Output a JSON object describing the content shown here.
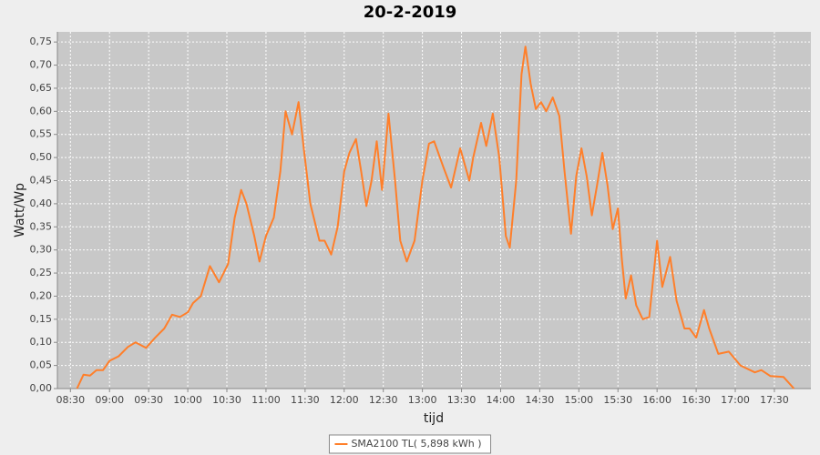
{
  "chart_data": {
    "type": "line",
    "title": "20-2-2019",
    "x_label": "tijd",
    "y_label": "Watt/Wp",
    "x": [
      "08:35",
      "08:40",
      "08:45",
      "08:50",
      "08:55",
      "09:00",
      "09:07",
      "09:14",
      "09:20",
      "09:28",
      "09:35",
      "09:42",
      "09:48",
      "09:54",
      "10:00",
      "10:04",
      "10:10",
      "10:17",
      "10:24",
      "10:31",
      "10:36",
      "10:41",
      "10:45",
      "10:51",
      "10:55",
      "11:00",
      "11:06",
      "11:11",
      "11:15",
      "11:20",
      "11:25",
      "11:29",
      "11:34",
      "11:41",
      "11:45",
      "11:50",
      "11:55",
      "12:00",
      "12:04",
      "12:09",
      "12:13",
      "12:17",
      "12:21",
      "12:25",
      "12:29",
      "12:34",
      "12:39",
      "12:43",
      "12:48",
      "12:54",
      "13:00",
      "13:05",
      "13:09",
      "13:16",
      "13:22",
      "13:29",
      "13:36",
      "13:39",
      "13:45",
      "13:49",
      "13:54",
      "13:59",
      "14:04",
      "14:07",
      "14:12",
      "14:16",
      "14:19",
      "14:23",
      "14:27",
      "14:31",
      "14:35",
      "14:40",
      "14:45",
      "14:49",
      "14:54",
      "14:58",
      "15:02",
      "15:06",
      "15:10",
      "15:14",
      "15:18",
      "15:22",
      "15:26",
      "15:30",
      "15:33",
      "15:36",
      "15:40",
      "15:44",
      "15:49",
      "15:54",
      "16:00",
      "16:04",
      "16:10",
      "16:15",
      "16:21",
      "16:25",
      "16:30",
      "16:36",
      "16:40",
      "16:47",
      "16:55",
      "17:04",
      "17:15",
      "17:20",
      "17:27",
      "17:37",
      "17:45"
    ],
    "series": [
      {
        "name": "SMA2100 TL( 5,898 kWh )",
        "color": "#ff7f2a",
        "values": [
          0.0,
          0.03,
          0.028,
          0.04,
          0.04,
          0.06,
          0.07,
          0.09,
          0.1,
          0.088,
          0.11,
          0.13,
          0.16,
          0.155,
          0.165,
          0.185,
          0.2,
          0.265,
          0.23,
          0.27,
          0.37,
          0.43,
          0.4,
          0.33,
          0.275,
          0.33,
          0.37,
          0.47,
          0.6,
          0.55,
          0.62,
          0.52,
          0.4,
          0.32,
          0.32,
          0.29,
          0.35,
          0.47,
          0.51,
          0.54,
          0.47,
          0.395,
          0.45,
          0.535,
          0.43,
          0.595,
          0.45,
          0.32,
          0.275,
          0.32,
          0.45,
          0.53,
          0.535,
          0.48,
          0.435,
          0.52,
          0.45,
          0.5,
          0.575,
          0.525,
          0.595,
          0.5,
          0.33,
          0.305,
          0.45,
          0.68,
          0.74,
          0.66,
          0.605,
          0.62,
          0.6,
          0.63,
          0.59,
          0.47,
          0.335,
          0.46,
          0.52,
          0.46,
          0.375,
          0.44,
          0.51,
          0.44,
          0.345,
          0.39,
          0.28,
          0.195,
          0.245,
          0.18,
          0.15,
          0.155,
          0.32,
          0.22,
          0.285,
          0.19,
          0.13,
          0.13,
          0.11,
          0.17,
          0.13,
          0.075,
          0.08,
          0.05,
          0.035,
          0.04,
          0.027,
          0.025,
          0.0
        ]
      }
    ],
    "xlim": [
      "08:20",
      "17:58"
    ],
    "xticks": [
      "08:30",
      "09:00",
      "09:30",
      "10:00",
      "10:30",
      "11:00",
      "11:30",
      "12:00",
      "12:30",
      "13:00",
      "13:30",
      "14:00",
      "14:30",
      "15:00",
      "15:30",
      "16:00",
      "16:30",
      "17:00",
      "17:30"
    ],
    "ylim": [
      0,
      0.772
    ],
    "yticks": [
      {
        "value": 0,
        "label": "0,00"
      },
      {
        "value": 0.05,
        "label": "0,05"
      },
      {
        "value": 0.1,
        "label": "0,10"
      },
      {
        "value": 0.15,
        "label": "0,15"
      },
      {
        "value": 0.2,
        "label": "0,20"
      },
      {
        "value": 0.25,
        "label": "0,25"
      },
      {
        "value": 0.3,
        "label": "0,30"
      },
      {
        "value": 0.35,
        "label": "0,35"
      },
      {
        "value": 0.4,
        "label": "0,40"
      },
      {
        "value": 0.45,
        "label": "0,45"
      },
      {
        "value": 0.5,
        "label": "0,50"
      },
      {
        "value": 0.55,
        "label": "0,55"
      },
      {
        "value": 0.6,
        "label": "0,60"
      },
      {
        "value": 0.65,
        "label": "0,65"
      },
      {
        "value": 0.7,
        "label": "0,70"
      },
      {
        "value": 0.75,
        "label": "0,75"
      }
    ],
    "grid": true,
    "legend": "bottom"
  }
}
